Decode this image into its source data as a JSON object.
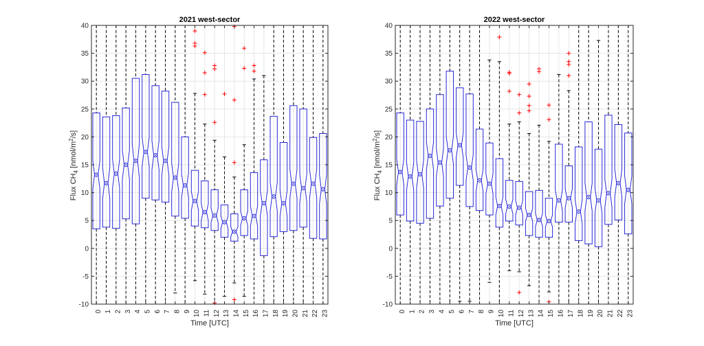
{
  "figure": {
    "colors": {
      "box": "#2727d8",
      "whisker": "#000000",
      "outlier": "#ff0000",
      "grid": "#e6e6e6",
      "axis": "#262626"
    }
  },
  "chart_data": [
    {
      "type": "box",
      "title": "2021 west-sector",
      "xlabel": "Time [UTC]",
      "ylabel_main": "Flux CH",
      "ylabel_sub": "4",
      "ylabel_tail_a": " [nmol/m",
      "ylabel_sup": "2",
      "ylabel_tail_b": "/s]",
      "ylim": [
        -10,
        40
      ],
      "yticks": [
        "-10",
        "-5",
        "0",
        "5",
        "10",
        "15",
        "20",
        "25",
        "30",
        "35",
        "40"
      ],
      "categories": [
        "0",
        "1",
        "2",
        "3",
        "4",
        "5",
        "6",
        "7",
        "8",
        "9",
        "10",
        "11",
        "12",
        "13",
        "14",
        "15",
        "16",
        "17",
        "18",
        "19",
        "20",
        "21",
        "22",
        "23"
      ],
      "grid": true,
      "notched": true,
      "boxes": [
        {
          "q1": 3.5,
          "median": 13.2,
          "q3": 24.3,
          "notch": 2.5,
          "wlo": -10,
          "whi": 40,
          "outliers": []
        },
        {
          "q1": 3.8,
          "median": 11.7,
          "q3": 23.6,
          "notch": 2.8,
          "wlo": -10,
          "whi": 40,
          "outliers": []
        },
        {
          "q1": 3.6,
          "median": 13.4,
          "q3": 23.8,
          "notch": 2.6,
          "wlo": -10,
          "whi": 40,
          "outliers": []
        },
        {
          "q1": 5.3,
          "median": 15.0,
          "q3": 25.2,
          "notch": 2.6,
          "wlo": -10,
          "whi": 40,
          "outliers": []
        },
        {
          "q1": 4.4,
          "median": 15.7,
          "q3": 30.5,
          "notch": 3.0,
          "wlo": -10,
          "whi": 40,
          "outliers": []
        },
        {
          "q1": 9.0,
          "median": 17.3,
          "q3": 31.2,
          "notch": 2.6,
          "wlo": -10,
          "whi": 40,
          "outliers": []
        },
        {
          "q1": 8.7,
          "median": 16.7,
          "q3": 29.2,
          "notch": 2.6,
          "wlo": -10,
          "whi": 40,
          "outliers": []
        },
        {
          "q1": 8.3,
          "median": 15.7,
          "q3": 28.2,
          "notch": 2.6,
          "wlo": -10,
          "whi": 40,
          "outliers": []
        },
        {
          "q1": 5.8,
          "median": 12.7,
          "q3": 26.2,
          "notch": 2.6,
          "wlo": -8.0,
          "whi": 40,
          "outliers": []
        },
        {
          "q1": 5.4,
          "median": 11.3,
          "q3": 20.0,
          "notch": 2.2,
          "wlo": -10,
          "whi": 40,
          "outliers": []
        },
        {
          "q1": 4.0,
          "median": 8.5,
          "q3": 14.0,
          "notch": 1.7,
          "wlo": -5.8,
          "whi": 27.8,
          "outliers": [
            39.0,
            36.8,
            36.3
          ]
        },
        {
          "q1": 3.7,
          "median": 6.5,
          "q3": 12.1,
          "notch": 1.5,
          "wlo": -8.2,
          "whi": 22.3,
          "outliers": [
            35.1,
            31.5,
            27.6
          ]
        },
        {
          "q1": 3.2,
          "median": 5.9,
          "q3": 10.5,
          "notch": 1.3,
          "wlo": -10,
          "whi": 19.4,
          "outliers": [
            32.8,
            32.2,
            22.6,
            -9.8
          ]
        },
        {
          "q1": 2.0,
          "median": 4.7,
          "q3": 7.8,
          "notch": 1.1,
          "wlo": -8.6,
          "whi": 16.4,
          "outliers": [
            27.7
          ]
        },
        {
          "q1": 1.3,
          "median": 3.0,
          "q3": 6.2,
          "notch": 0.9,
          "wlo": -6.2,
          "whi": 12.8,
          "outliers": [
            39.8,
            26.6,
            15.4,
            -9.2
          ]
        },
        {
          "q1": 2.3,
          "median": 5.4,
          "q3": 10.5,
          "notch": 1.3,
          "wlo": -8.6,
          "whi": 18.6,
          "outliers": [
            35.9,
            32.3
          ]
        },
        {
          "q1": 1.7,
          "median": 5.8,
          "q3": 13.6,
          "notch": 1.8,
          "wlo": -10,
          "whi": 30.4,
          "outliers": [
            32.8,
            31.8
          ]
        },
        {
          "q1": -1.3,
          "median": 8.1,
          "q3": 15.9,
          "notch": 2.3,
          "wlo": -10,
          "whi": 31.0,
          "outliers": []
        },
        {
          "q1": 2.1,
          "median": 9.3,
          "q3": 23.7,
          "notch": 2.6,
          "wlo": -10,
          "whi": 40,
          "outliers": []
        },
        {
          "q1": 3.0,
          "median": 8.1,
          "q3": 19.0,
          "notch": 2.3,
          "wlo": -10,
          "whi": 40,
          "outliers": []
        },
        {
          "q1": 3.2,
          "median": 11.6,
          "q3": 25.6,
          "notch": 2.6,
          "wlo": -10,
          "whi": 40,
          "outliers": []
        },
        {
          "q1": 3.8,
          "median": 10.8,
          "q3": 25.0,
          "notch": 2.6,
          "wlo": -10,
          "whi": 40,
          "outliers": []
        },
        {
          "q1": 1.8,
          "median": 11.6,
          "q3": 19.9,
          "notch": 2.6,
          "wlo": -10,
          "whi": 40,
          "outliers": []
        },
        {
          "q1": 1.7,
          "median": 10.6,
          "q3": 20.6,
          "notch": 2.6,
          "wlo": -10,
          "whi": 40,
          "outliers": []
        }
      ]
    },
    {
      "type": "box",
      "title": "2022 west-sector",
      "xlabel": "Time [UTC]",
      "ylabel_main": "Flux CH",
      "ylabel_sub": "4",
      "ylabel_tail_a": " [nmol/m",
      "ylabel_sup": "2",
      "ylabel_tail_b": "/s]",
      "ylim": [
        -10,
        40
      ],
      "yticks": [
        "-10",
        "-5",
        "0",
        "5",
        "10",
        "15",
        "20",
        "25",
        "30",
        "35",
        "40"
      ],
      "categories": [
        "0",
        "1",
        "2",
        "3",
        "4",
        "5",
        "6",
        "7",
        "8",
        "9",
        "10",
        "11",
        "12",
        "13",
        "14",
        "15",
        "16",
        "17",
        "18",
        "19",
        "20",
        "21",
        "22",
        "23"
      ],
      "grid": true,
      "notched": true,
      "boxes": [
        {
          "q1": 6.0,
          "median": 13.7,
          "q3": 24.3,
          "notch": 2.3,
          "wlo": -10,
          "whi": 40,
          "outliers": []
        },
        {
          "q1": 4.9,
          "median": 12.9,
          "q3": 23.0,
          "notch": 2.5,
          "wlo": -10,
          "whi": 40,
          "outliers": []
        },
        {
          "q1": 4.5,
          "median": 13.3,
          "q3": 22.8,
          "notch": 2.5,
          "wlo": -10,
          "whi": 40,
          "outliers": []
        },
        {
          "q1": 5.4,
          "median": 16.6,
          "q3": 25.0,
          "notch": 2.5,
          "wlo": -10,
          "whi": 40,
          "outliers": []
        },
        {
          "q1": 7.6,
          "median": 15.4,
          "q3": 27.6,
          "notch": 2.5,
          "wlo": -10,
          "whi": 40,
          "outliers": []
        },
        {
          "q1": 9.0,
          "median": 17.6,
          "q3": 31.8,
          "notch": 2.5,
          "wlo": -10,
          "whi": 40,
          "outliers": []
        },
        {
          "q1": 11.3,
          "median": 18.5,
          "q3": 28.8,
          "notch": 2.3,
          "wlo": -9.5,
          "whi": 40,
          "outliers": []
        },
        {
          "q1": 7.5,
          "median": 14.5,
          "q3": 27.7,
          "notch": 2.3,
          "wlo": -9.5,
          "whi": 40,
          "outliers": []
        },
        {
          "q1": 6.8,
          "median": 12.2,
          "q3": 21.4,
          "notch": 2.0,
          "wlo": -10,
          "whi": 40,
          "outliers": []
        },
        {
          "q1": 6.0,
          "median": 11.6,
          "q3": 18.9,
          "notch": 1.8,
          "wlo": -6.1,
          "whi": 33.8,
          "outliers": []
        },
        {
          "q1": 3.8,
          "median": 7.6,
          "q3": 16.1,
          "notch": 1.6,
          "wlo": -10,
          "whi": 33.5,
          "outliers": [
            37.9
          ]
        },
        {
          "q1": 4.9,
          "median": 7.5,
          "q3": 12.2,
          "notch": 1.3,
          "wlo": -4.0,
          "whi": 22.3,
          "outliers": [
            31.6,
            31.4,
            28.2
          ]
        },
        {
          "q1": 4.2,
          "median": 7.3,
          "q3": 12.0,
          "notch": 1.3,
          "wlo": -4.2,
          "whi": 22.7,
          "outliers": [
            27.6,
            24.3,
            -7.9
          ]
        },
        {
          "q1": 2.3,
          "median": 6.0,
          "q3": 10.2,
          "notch": 1.2,
          "wlo": -6.7,
          "whi": 20.6,
          "outliers": [
            29.5,
            27.3,
            25.6,
            24.7
          ]
        },
        {
          "q1": 2.0,
          "median": 5.1,
          "q3": 10.4,
          "notch": 1.2,
          "wlo": -10,
          "whi": 22.1,
          "outliers": [
            32.2,
            31.7
          ]
        },
        {
          "q1": 2.0,
          "median": 4.9,
          "q3": 9.0,
          "notch": 1.1,
          "wlo": -7.8,
          "whi": 19.2,
          "outliers": [
            25.7,
            23.1,
            -9.6
          ]
        },
        {
          "q1": 4.7,
          "median": 8.6,
          "q3": 18.7,
          "notch": 1.9,
          "wlo": -10,
          "whi": 31.2,
          "outliers": []
        },
        {
          "q1": 4.7,
          "median": 9.0,
          "q3": 14.8,
          "notch": 1.7,
          "wlo": -10,
          "whi": 28.3,
          "outliers": [
            35.0,
            33.5,
            33.0,
            31.0
          ]
        },
        {
          "q1": 1.4,
          "median": 6.6,
          "q3": 18.2,
          "notch": 2.2,
          "wlo": -10,
          "whi": 40,
          "outliers": []
        },
        {
          "q1": 0.8,
          "median": 9.2,
          "q3": 22.7,
          "notch": 2.5,
          "wlo": -10,
          "whi": 40,
          "outliers": []
        },
        {
          "q1": 0.3,
          "median": 8.6,
          "q3": 17.8,
          "notch": 2.3,
          "wlo": -10,
          "whi": 37.3,
          "outliers": []
        },
        {
          "q1": 4.3,
          "median": 9.9,
          "q3": 23.9,
          "notch": 2.5,
          "wlo": -10,
          "whi": 40,
          "outliers": []
        },
        {
          "q1": 5.1,
          "median": 11.7,
          "q3": 22.2,
          "notch": 2.5,
          "wlo": -10,
          "whi": 40,
          "outliers": []
        },
        {
          "q1": 2.6,
          "median": 10.5,
          "q3": 20.7,
          "notch": 2.5,
          "wlo": -10,
          "whi": 40,
          "outliers": []
        }
      ]
    }
  ]
}
